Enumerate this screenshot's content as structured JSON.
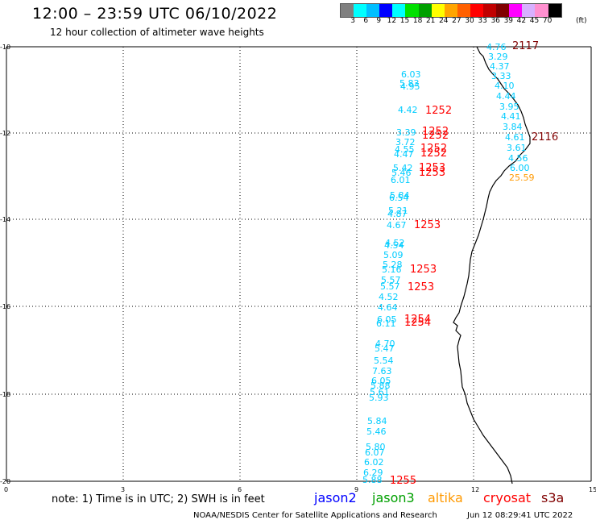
{
  "header": {
    "title": "12:00 – 23:59 UTC 06/10/2022",
    "subtitle": "12 hour collection of altimeter wave heights"
  },
  "scale": {
    "colors": [
      "#808080",
      "#00ffff",
      "#00bfff",
      "#0000ff",
      "#00ffff",
      "#00e000",
      "#00a000",
      "#ffff00",
      "#ffa500",
      "#ff6000",
      "#ff0000",
      "#c00000",
      "#800000",
      "#ff00ff",
      "#d8b0ff",
      "#ff90d0",
      "#000000"
    ],
    "labels": [
      "3",
      "6",
      "9",
      "12",
      "15",
      "18",
      "21",
      "24",
      "27",
      "30",
      "33",
      "36",
      "39",
      "42",
      "45",
      "70"
    ],
    "unit": "(ft)"
  },
  "axes": {
    "y_ticks": [
      "10",
      "12",
      "14",
      "16",
      "18",
      "20"
    ],
    "x_ticks": [
      "0",
      "3",
      "6",
      "9",
      "12",
      "15"
    ]
  },
  "colors": {
    "jason2": "#0000ff",
    "jason3": "#00a000",
    "altika": "#ff9900",
    "cryosat": "#ff0000",
    "s3a": "#800000",
    "cyan_obs": "#00ccff",
    "coastline": "#000000"
  },
  "observations": [
    {
      "text": "4.76",
      "color": "cyan_obs"
    },
    {
      "text": "3.29",
      "color": "cyan_obs"
    },
    {
      "text": "4.37",
      "color": "cyan_obs"
    },
    {
      "text": "3.33",
      "color": "cyan_obs"
    },
    {
      "text": "4.10",
      "color": "cyan_obs"
    },
    {
      "text": "4.44",
      "color": "cyan_obs"
    },
    {
      "text": "3.95",
      "color": "cyan_obs"
    },
    {
      "text": "4.41",
      "color": "cyan_obs"
    },
    {
      "text": "3.84",
      "color": "cyan_obs"
    },
    {
      "text": "4.61",
      "color": "cyan_obs"
    },
    {
      "text": "3.61",
      "color": "cyan_obs"
    },
    {
      "text": "4.56",
      "color": "cyan_obs"
    },
    {
      "text": "6.00",
      "color": "cyan_obs"
    },
    {
      "text": "25.59",
      "color": "altika"
    },
    {
      "text": "6.03",
      "color": "cyan_obs"
    },
    {
      "text": "5.83",
      "color": "cyan_obs"
    },
    {
      "text": "4.95",
      "color": "cyan_obs"
    },
    {
      "text": "4.42",
      "color": "cyan_obs"
    },
    {
      "text": "3.39",
      "color": "cyan_obs"
    },
    {
      "text": "3.72",
      "color": "cyan_obs"
    },
    {
      "text": "4.55",
      "color": "cyan_obs"
    },
    {
      "text": "4.47",
      "color": "cyan_obs"
    },
    {
      "text": "5.42",
      "color": "cyan_obs"
    },
    {
      "text": "5.46",
      "color": "cyan_obs"
    },
    {
      "text": "6.01",
      "color": "cyan_obs"
    },
    {
      "text": "5.84",
      "color": "cyan_obs"
    },
    {
      "text": "6.54",
      "color": "cyan_obs"
    },
    {
      "text": "5.21",
      "color": "cyan_obs"
    },
    {
      "text": "4.87",
      "color": "cyan_obs"
    },
    {
      "text": "4.67",
      "color": "cyan_obs"
    },
    {
      "text": "4.52",
      "color": "cyan_obs"
    },
    {
      "text": "4.54",
      "color": "cyan_obs"
    },
    {
      "text": "5.09",
      "color": "cyan_obs"
    },
    {
      "text": "5.28",
      "color": "cyan_obs"
    },
    {
      "text": "5.16",
      "color": "cyan_obs"
    },
    {
      "text": "5.57",
      "color": "cyan_obs"
    },
    {
      "text": "5.57",
      "color": "cyan_obs"
    },
    {
      "text": "4.52",
      "color": "cyan_obs"
    },
    {
      "text": "4.64",
      "color": "cyan_obs"
    },
    {
      "text": "6.05",
      "color": "cyan_obs"
    },
    {
      "text": "6.11",
      "color": "cyan_obs"
    },
    {
      "text": "4.70",
      "color": "cyan_obs"
    },
    {
      "text": "5.47",
      "color": "cyan_obs"
    },
    {
      "text": "5.54",
      "color": "cyan_obs"
    },
    {
      "text": "7.63",
      "color": "cyan_obs"
    },
    {
      "text": "6.05",
      "color": "cyan_obs"
    },
    {
      "text": "5.88",
      "color": "cyan_obs"
    },
    {
      "text": "5.61",
      "color": "cyan_obs"
    },
    {
      "text": "5.93",
      "color": "cyan_obs"
    },
    {
      "text": "5.84",
      "color": "cyan_obs"
    },
    {
      "text": "5.46",
      "color": "cyan_obs"
    },
    {
      "text": "5.80",
      "color": "cyan_obs"
    },
    {
      "text": "6.07",
      "color": "cyan_obs"
    },
    {
      "text": "6.02",
      "color": "cyan_obs"
    },
    {
      "text": "6.29",
      "color": "cyan_obs"
    },
    {
      "text": "5.88",
      "color": "cyan_obs"
    }
  ],
  "revolutions": [
    {
      "text": "2117",
      "color": "s3a"
    },
    {
      "text": "2116",
      "color": "s3a"
    },
    {
      "text": "1252",
      "color": "cryosat"
    },
    {
      "text": "1252",
      "color": "cryosat"
    },
    {
      "text": "1252",
      "color": "cryosat"
    },
    {
      "text": "1252",
      "color": "cryosat"
    },
    {
      "text": "1252",
      "color": "cryosat"
    },
    {
      "text": "1253",
      "color": "cryosat"
    },
    {
      "text": "1253",
      "color": "cryosat"
    },
    {
      "text": "1253",
      "color": "cryosat"
    },
    {
      "text": "1253",
      "color": "cryosat"
    },
    {
      "text": "1253",
      "color": "cryosat"
    },
    {
      "text": "1254",
      "color": "cryosat"
    },
    {
      "text": "1254",
      "color": "cryosat"
    },
    {
      "text": "1255",
      "color": "cryosat"
    }
  ],
  "note": "note: 1) Time is in UTC; 2) SWH is in feet",
  "legend": [
    {
      "label": "jason2",
      "color": "jason2"
    },
    {
      "label": "jason3",
      "color": "jason3"
    },
    {
      "label": "altika",
      "color": "altika"
    },
    {
      "label": "cryosat",
      "color": "cryosat"
    },
    {
      "label": "s3a",
      "color": "s3a"
    }
  ],
  "footer": {
    "credit": "NOAA/NESDIS Center for Satellite Applications and Research",
    "timestamp": "Jun 12 08:29:41 UTC 2022"
  }
}
